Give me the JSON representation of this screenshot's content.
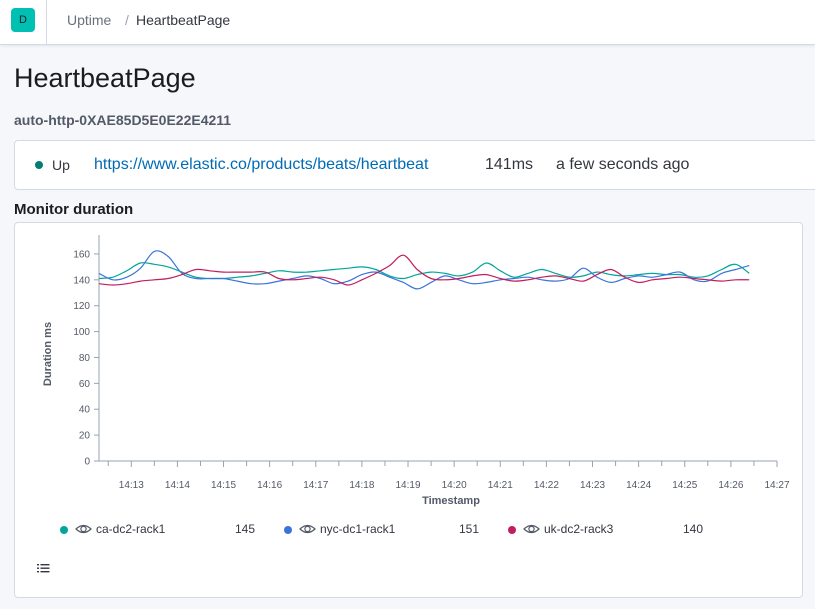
{
  "header": {
    "avatar_letter": "D",
    "breadcrumbs": [
      "Uptime",
      "/",
      "HeartbeatPage"
    ]
  },
  "page": {
    "title": "HeartbeatPage",
    "monitor_id": "auto-http-0XAE85D5E0E22E4211"
  },
  "status": {
    "state": "Up",
    "state_color": "#017d73",
    "url": "https://www.elastic.co/products/beats/heartbeat",
    "duration": "141ms",
    "checked": "a few seconds ago"
  },
  "section": {
    "title": "Monitor duration"
  },
  "chart_data": {
    "type": "line",
    "xlabel": "Timestamp",
    "ylabel": "Duration ms",
    "ylim": [
      0,
      170
    ],
    "yticks": [
      0,
      20,
      40,
      60,
      80,
      100,
      120,
      140,
      160
    ],
    "xlim": [
      12.3,
      27.0
    ],
    "xticks": [
      "14:13",
      "14:14",
      "14:15",
      "14:16",
      "14:17",
      "14:18",
      "14:19",
      "14:20",
      "14:21",
      "14:22",
      "14:23",
      "14:24",
      "14:25",
      "14:26",
      "14:27"
    ],
    "grid": false,
    "legend_placement": "bottom",
    "series": [
      {
        "name": "ca-dc2-rack1",
        "color": "#00a69b",
        "legend_value": "145",
        "x": [
          12.3,
          12.6,
          12.9,
          13.2,
          13.5,
          13.8,
          14.1,
          14.4,
          14.7,
          15,
          15.3,
          15.6,
          15.9,
          16.2,
          16.5,
          16.8,
          17.1,
          17.4,
          17.7,
          18,
          18.3,
          18.6,
          18.9,
          19.2,
          19.5,
          19.8,
          20.1,
          20.4,
          20.7,
          21,
          21.3,
          21.6,
          21.9,
          22.2,
          22.5,
          22.8,
          23.1,
          23.4,
          23.7,
          24,
          24.3,
          24.6,
          24.9,
          25.2,
          25.5,
          25.8,
          26.1,
          26.4
        ],
        "y": [
          141,
          142,
          147,
          153,
          152,
          150,
          146,
          142,
          141,
          141,
          142,
          143,
          145,
          147,
          146,
          146,
          147,
          148,
          149,
          150,
          148,
          143,
          141,
          144,
          146,
          145,
          143,
          146,
          153,
          147,
          142,
          145,
          148,
          145,
          142,
          143,
          146,
          144,
          143,
          144,
          145,
          144,
          144,
          142,
          143,
          148,
          152,
          145
        ]
      },
      {
        "name": "nyc-dc1-rack1",
        "color": "#3b74d9",
        "legend_value": "151",
        "x": [
          12.3,
          12.6,
          12.9,
          13.2,
          13.5,
          13.8,
          14.1,
          14.4,
          14.7,
          15,
          15.3,
          15.6,
          15.9,
          16.2,
          16.5,
          16.8,
          17.1,
          17.4,
          17.7,
          18,
          18.3,
          18.6,
          18.9,
          19.2,
          19.5,
          19.8,
          20.1,
          20.4,
          20.7,
          21,
          21.3,
          21.6,
          21.9,
          22.2,
          22.5,
          22.8,
          23.1,
          23.4,
          23.7,
          24,
          24.3,
          24.6,
          24.9,
          25.2,
          25.5,
          25.8,
          26.1,
          26.4
        ],
        "y": [
          145,
          140,
          142,
          149,
          162,
          158,
          145,
          141,
          141,
          141,
          139,
          137,
          137,
          139,
          141,
          143,
          141,
          137,
          139,
          144,
          146,
          142,
          138,
          133,
          138,
          143,
          140,
          137,
          138,
          140,
          141,
          142,
          140,
          139,
          141,
          149,
          142,
          138,
          141,
          143,
          142,
          144,
          146,
          140,
          139,
          145,
          148,
          151
        ]
      },
      {
        "name": "uk-dc2-rack3",
        "color": "#c21d5e",
        "legend_value": "140",
        "x": [
          12.3,
          12.6,
          12.9,
          13.2,
          13.5,
          13.8,
          14.1,
          14.4,
          14.7,
          15,
          15.3,
          15.6,
          15.9,
          16.2,
          16.5,
          16.8,
          17.1,
          17.4,
          17.7,
          18,
          18.3,
          18.6,
          18.9,
          19.2,
          19.5,
          19.8,
          20.1,
          20.4,
          20.7,
          21,
          21.3,
          21.6,
          21.9,
          22.2,
          22.5,
          22.8,
          23.1,
          23.4,
          23.7,
          24,
          24.3,
          24.6,
          24.9,
          25.2,
          25.5,
          25.8,
          26.1,
          26.4
        ],
        "y": [
          137,
          136,
          137,
          139,
          140,
          141,
          144,
          148,
          147,
          146,
          146,
          146,
          146,
          141,
          140,
          141,
          142,
          140,
          136,
          140,
          145,
          151,
          159,
          148,
          141,
          140,
          141,
          143,
          144,
          141,
          139,
          140,
          142,
          143,
          141,
          139,
          144,
          148,
          142,
          138,
          140,
          141,
          142,
          141,
          140,
          139,
          140,
          140
        ]
      }
    ]
  },
  "icons": {
    "legend_visibility": "eye-icon",
    "list": "list-icon"
  }
}
